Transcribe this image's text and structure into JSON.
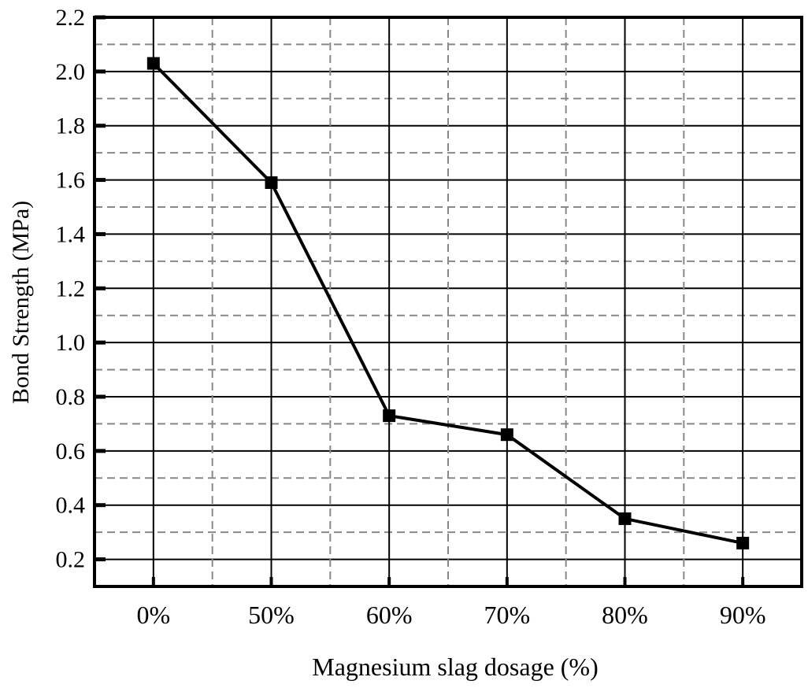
{
  "chart_data": {
    "type": "line",
    "title": "",
    "xlabel": "Magnesium slag dosage (%)",
    "ylabel": "Bond Strength (MPa)",
    "categories": [
      "0%",
      "50%",
      "60%",
      "70%",
      "80%",
      "90%"
    ],
    "series": [
      {
        "values": [
          2.03,
          1.59,
          0.73,
          0.66,
          0.35,
          0.26
        ],
        "color": "#000000",
        "marker": "square"
      }
    ],
    "ylim": [
      0.1,
      2.2
    ],
    "yticks": [
      "0.2",
      "0.4",
      "0.6",
      "0.8",
      "1.0",
      "1.2",
      "1.4",
      "1.6",
      "1.8",
      "2.0",
      "2.2"
    ],
    "grid": true,
    "minor_grid": "dashed"
  }
}
